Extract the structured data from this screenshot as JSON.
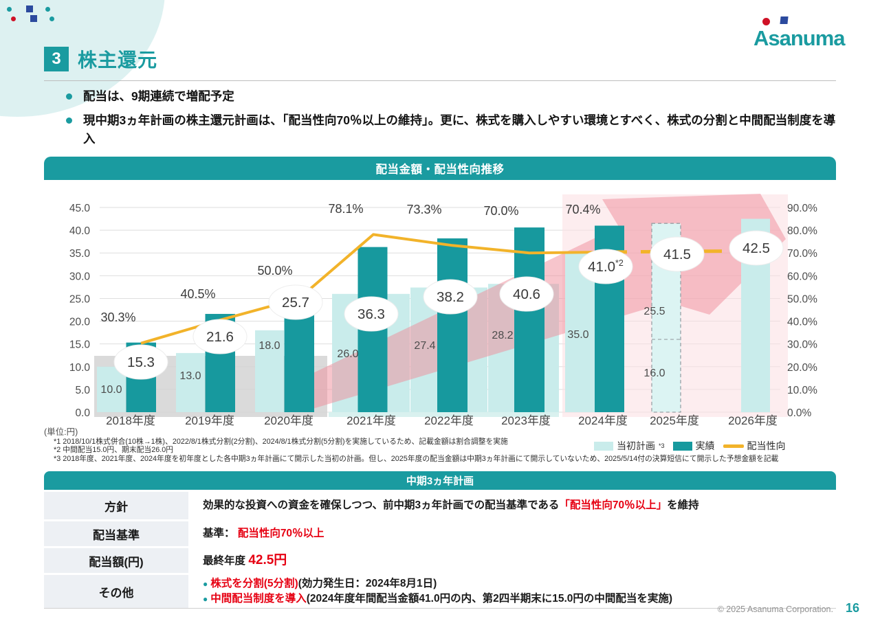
{
  "logo": {
    "text": "Asanuma"
  },
  "header": {
    "section_number": "3",
    "section_title": "株主還元"
  },
  "bullets": [
    "配当は、9期連続で増配予定",
    "現中期3ヵ年計画の株主還元計画は、「配当性向70％以上の維持」。更に、株式を購入しやすい環境とすべく、株式の分割と中間配当制度を導入"
  ],
  "chart_data": {
    "type": "bar+line",
    "title": "配当金額・配当性向推移",
    "unit_label": "(単位:円)",
    "categories": [
      "2018年度",
      "2019年度",
      "2020年度",
      "2021年度",
      "2022年度",
      "2023年度",
      "2024年度",
      "2025年度",
      "2026年度"
    ],
    "series": [
      {
        "name": "当初計画",
        "note": "*3",
        "type": "bar",
        "axis": "left",
        "values": [
          10.0,
          13.0,
          18.0,
          26.0,
          27.4,
          28.2,
          35.0,
          41.5,
          42.5
        ]
      },
      {
        "name": "実績",
        "type": "bar",
        "axis": "left",
        "values": [
          15.3,
          21.6,
          25.7,
          36.3,
          38.2,
          40.6,
          41.0,
          null,
          null
        ]
      },
      {
        "name": "配当性向",
        "type": "line",
        "axis": "right",
        "unit": "%",
        "values": [
          30.3,
          40.5,
          50.0,
          78.1,
          73.3,
          70.0,
          70.4,
          null,
          null
        ]
      }
    ],
    "bar_2025_forecast": {
      "style": "dashed",
      "total": 41.5,
      "segments": [
        {
          "value": 16.0
        },
        {
          "value": 25.5
        }
      ]
    },
    "value_note_2024": "*2",
    "ylabel_left": "円",
    "ylim_left": [
      0,
      45
    ],
    "ytick_step_left": 5,
    "ylim_right_percent": [
      0,
      90
    ],
    "ytick_step_right": 10,
    "grid": true,
    "legend_position": "bottom-right",
    "colors": {
      "plan": "#c9eceb",
      "actual": "#17999e",
      "payout_line": "#f2b32a",
      "forecast_fill": "#dcf4f3",
      "era1_band": "#d3d3d3",
      "era2_band": "#d9f1ef",
      "era3_band": "#fbdee2",
      "arrow": "#f08c9a"
    }
  },
  "footnotes": [
    "*1 2018/10/1株式併合(10株→1株)、2022/8/1株式分割(2分割)、2024/8/1株式分割(5分割)を実施しているため、記載金額は割合調整を実施",
    "*2 中間配当15.0円、期末配当26.0円",
    "*3 2018年度、2021年度、2024年度を初年度とした各中期3ヵ年計画にて開示した当初の計画。但し、2025年度の配当金額は中期3ヵ年計画にて開示していないため、2025/5/14付の決算短信にて開示した予想金額を記載"
  ],
  "table": {
    "title": "中期3ヵ年計画",
    "rows": [
      {
        "label": "方針",
        "lines": [
          {
            "bullet": false,
            "segments": [
              {
                "t": "効果的な投資への資金を確保しつつ、前中期3ヵ年計画での配当基準である",
                "red": false
              },
              {
                "t": "「配当性向70％以上」",
                "red": true
              },
              {
                "t": "を維持",
                "red": false
              }
            ]
          }
        ]
      },
      {
        "label": "配当基準",
        "lines": [
          {
            "bullet": false,
            "segments": [
              {
                "t": "基準： ",
                "red": false
              },
              {
                "t": "配当性向70％以上",
                "red": true
              }
            ]
          }
        ]
      },
      {
        "label": "配当額(円)",
        "lines": [
          {
            "bullet": false,
            "segments": [
              {
                "t": "最終年度 ",
                "red": false
              },
              {
                "t": "42.5円",
                "red": true,
                "big": true
              }
            ]
          }
        ]
      },
      {
        "label": "その他",
        "lines": [
          {
            "bullet": true,
            "segments": [
              {
                "t": "株式を分割(5分割)",
                "red": true
              },
              {
                "t": "(効力発生日：2024年8月1日)",
                "red": false
              }
            ]
          },
          {
            "bullet": true,
            "segments": [
              {
                "t": "中間配当制度を導入",
                "red": true
              },
              {
                "t": "(2024年度年間配当金額41.0円の内、第2四半期末に15.0円の中間配当を実施)",
                "red": false
              }
            ]
          }
        ]
      }
    ]
  },
  "footer": {
    "copyright": "© 2025 Asanuma Corporation.",
    "page_number": "16"
  }
}
